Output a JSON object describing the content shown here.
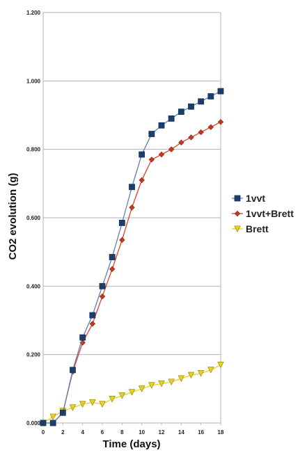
{
  "chart_data": {
    "type": "line",
    "title": "",
    "xlabel": "Time (days)",
    "ylabel": "CO2 evolution (g)",
    "xlim": [
      0,
      18
    ],
    "ylim": [
      0,
      1.2
    ],
    "x_ticks": [
      0,
      2,
      4,
      6,
      8,
      10,
      12,
      14,
      16,
      18
    ],
    "y_ticks": [
      0,
      0.2,
      0.4,
      0.6,
      0.8,
      1.0,
      1.2
    ],
    "x_tick_labels": [
      "0",
      "2",
      "4",
      "6",
      "8",
      "10",
      "12",
      "14",
      "16",
      "18"
    ],
    "y_tick_labels": [
      "0.000",
      "0.200",
      "0.400",
      "0.600",
      "0.800",
      "1.000",
      "1.200"
    ],
    "grid": "horizontal",
    "legend_position": "right",
    "series": [
      {
        "name": "1vvt",
        "color": "#1c3f6e",
        "line_color": "#5b7fb8",
        "marker": "square",
        "x": [
          0,
          1,
          2,
          3,
          4,
          5,
          6,
          7,
          8,
          9,
          10,
          11,
          12,
          13,
          14,
          15,
          16,
          17,
          18
        ],
        "values": [
          0.0,
          0.0,
          0.03,
          0.155,
          0.25,
          0.315,
          0.4,
          0.485,
          0.585,
          0.69,
          0.785,
          0.845,
          0.87,
          0.89,
          0.91,
          0.925,
          0.94,
          0.955,
          0.97
        ]
      },
      {
        "name": "1vvt+Brett",
        "color": "#c03a22",
        "line_color": "#e0402a",
        "marker": "diamond",
        "x": [
          0,
          1,
          2,
          3,
          4,
          5,
          6,
          7,
          8,
          9,
          10,
          11,
          12,
          13,
          14,
          15,
          16,
          17,
          18
        ],
        "values": [
          0.0,
          0.0,
          0.03,
          0.15,
          0.235,
          0.29,
          0.37,
          0.45,
          0.535,
          0.63,
          0.71,
          0.77,
          0.785,
          0.8,
          0.82,
          0.835,
          0.85,
          0.865,
          0.88
        ]
      },
      {
        "name": "Brett",
        "color": "#e6d21e",
        "line_color": "#e6d21e",
        "marker": "triangle-down",
        "x": [
          0,
          1,
          2,
          3,
          4,
          5,
          6,
          7,
          8,
          9,
          10,
          11,
          12,
          13,
          14,
          15,
          16,
          17,
          18
        ],
        "values": [
          0.0,
          0.018,
          0.035,
          0.045,
          0.055,
          0.06,
          0.055,
          0.07,
          0.08,
          0.09,
          0.1,
          0.11,
          0.115,
          0.12,
          0.13,
          0.14,
          0.145,
          0.155,
          0.17
        ]
      }
    ]
  }
}
